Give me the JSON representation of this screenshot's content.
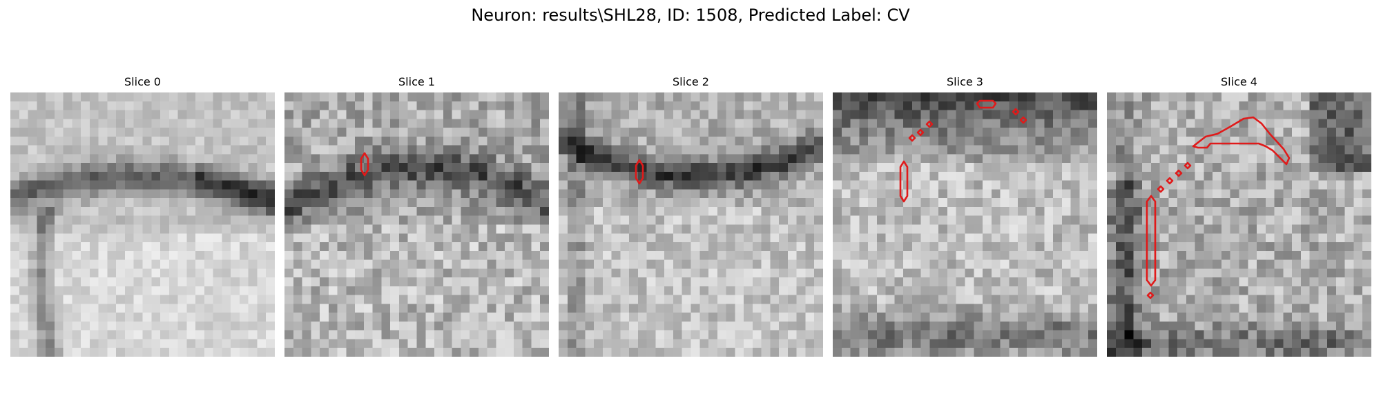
{
  "title": "Neuron: results\\SHL28, ID: 1508, Predicted Label: CV",
  "slices": [
    {
      "label": "Slice 0"
    },
    {
      "label": "Slice 1"
    },
    {
      "label": "Slice 2"
    },
    {
      "label": "Slice 3"
    },
    {
      "label": "Slice 4"
    }
  ],
  "colors": {
    "contour": "#e01a1a",
    "background": "#ffffff"
  }
}
